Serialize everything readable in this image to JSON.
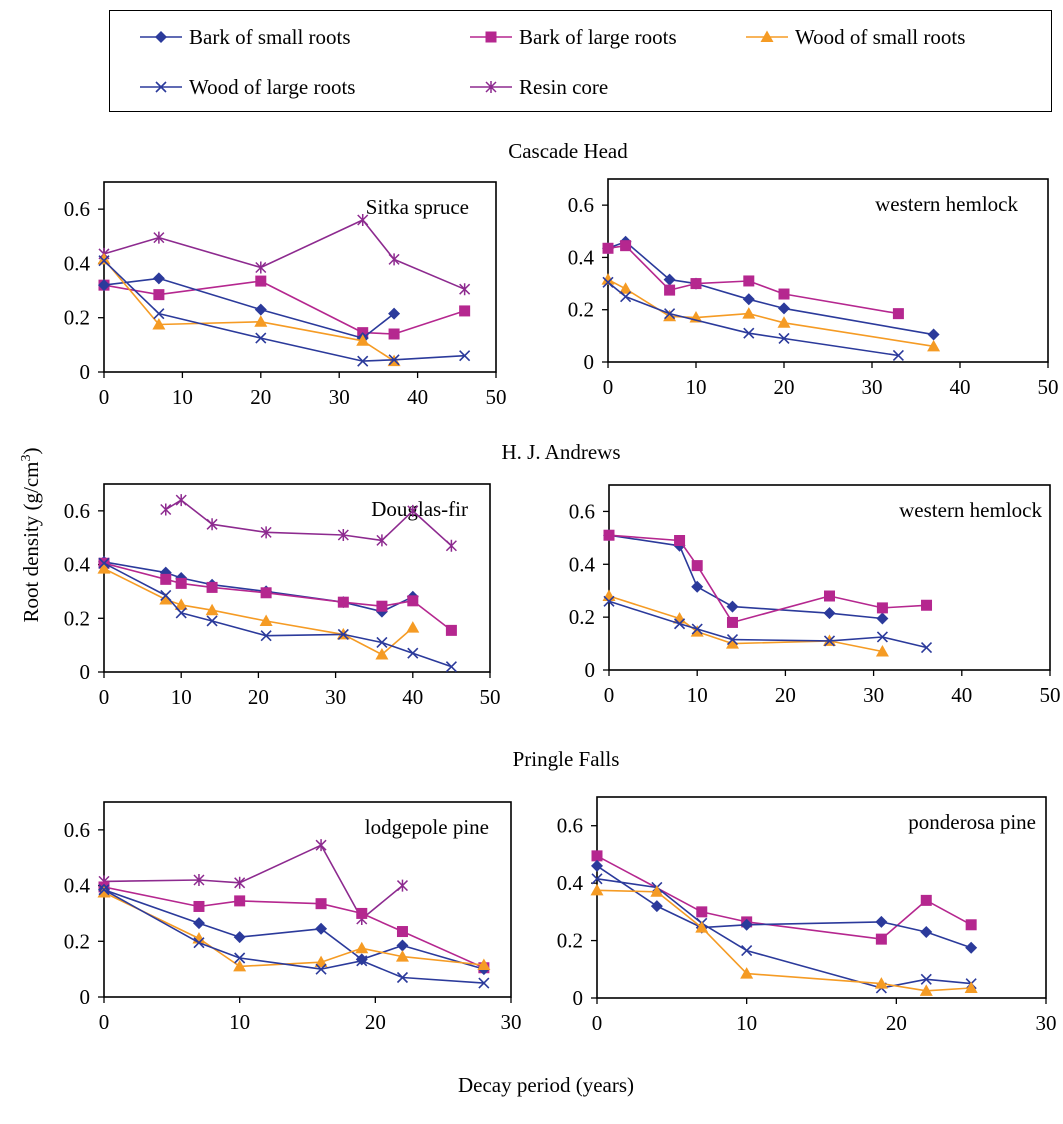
{
  "legend": {
    "position": "top",
    "entries": [
      {
        "key": "bsr",
        "label": "Bark of small roots",
        "color": "#2b3a9b",
        "marker": "diamond"
      },
      {
        "key": "blr",
        "label": "Bark of large roots",
        "color": "#b5278f",
        "marker": "square"
      },
      {
        "key": "wsr",
        "label": "Wood of small roots",
        "color": "#f59b24",
        "marker": "triangle"
      },
      {
        "key": "wlr",
        "label": "Wood of large roots",
        "color": "#2b3a9b",
        "marker": "x"
      },
      {
        "key": "rc",
        "label": "Resin core",
        "color": "#8d2a8f",
        "marker": "asterisk"
      }
    ]
  },
  "sites": [
    "Cascade Head",
    "H. J. Andrews",
    "Pringle Falls"
  ],
  "ylabel": "Root density (g/cm",
  "ylabel_sup": "3",
  "ylabel_close": ")",
  "xlabel": "Decay period (years)",
  "chart_data": [
    {
      "type": "line",
      "site": "Cascade Head",
      "title": "Sitka spruce",
      "xlim": [
        0,
        50
      ],
      "ylim": [
        0,
        0.7
      ],
      "xticks": [
        0,
        10,
        20,
        30,
        40,
        50
      ],
      "yticks": [
        0,
        0.2,
        0.4,
        0.6
      ],
      "xtick_labels": [
        "0",
        "10",
        "20",
        "30",
        "40",
        "50"
      ],
      "ytick_labels": [
        "0",
        "0.2",
        "0.4",
        "0.6"
      ],
      "series": [
        {
          "key": "rc",
          "x": [
            0,
            7,
            20,
            33,
            37,
            46
          ],
          "y": [
            0.435,
            0.495,
            0.385,
            0.56,
            0.415,
            0.305
          ]
        },
        {
          "key": "blr",
          "x": [
            0,
            7,
            20,
            33,
            37,
            46
          ],
          "y": [
            0.32,
            0.285,
            0.335,
            0.145,
            0.14,
            0.225
          ]
        },
        {
          "key": "bsr",
          "x": [
            0,
            7,
            20,
            33,
            37
          ],
          "y": [
            0.32,
            0.345,
            0.23,
            0.125,
            0.215
          ]
        },
        {
          "key": "wsr",
          "x": [
            0,
            7,
            20,
            33,
            37
          ],
          "y": [
            0.415,
            0.175,
            0.185,
            0.115,
            0.04
          ]
        },
        {
          "key": "wlr",
          "x": [
            0,
            7,
            20,
            33,
            37,
            46
          ],
          "y": [
            0.41,
            0.215,
            0.125,
            0.04,
            0.045,
            0.06
          ]
        }
      ]
    },
    {
      "type": "line",
      "site": "Cascade Head",
      "title": "western hemlock",
      "xlim": [
        0,
        50
      ],
      "ylim": [
        0,
        0.7
      ],
      "xticks": [
        0,
        10,
        20,
        30,
        40,
        50
      ],
      "yticks": [
        0,
        0.2,
        0.4,
        0.6
      ],
      "xtick_labels": [
        "0",
        "10",
        "20",
        "30",
        "40",
        "50"
      ],
      "ytick_labels": [
        "0",
        "0.2",
        "0.4",
        "0.6"
      ],
      "series": [
        {
          "key": "bsr",
          "x": [
            0,
            2,
            7,
            10,
            16,
            20,
            37
          ],
          "y": [
            0.435,
            0.46,
            0.315,
            0.3,
            0.24,
            0.205,
            0.105
          ]
        },
        {
          "key": "blr",
          "x": [
            0,
            2,
            7,
            10,
            16,
            20,
            33
          ],
          "y": [
            0.435,
            0.445,
            0.275,
            0.3,
            0.31,
            0.26,
            0.185
          ]
        },
        {
          "key": "wsr",
          "x": [
            0,
            2,
            7,
            10,
            16,
            20,
            37
          ],
          "y": [
            0.315,
            0.28,
            0.175,
            0.17,
            0.185,
            0.15,
            0.06
          ]
        },
        {
          "key": "wlr",
          "x": [
            0,
            2,
            7,
            16,
            20,
            33
          ],
          "y": [
            0.305,
            0.25,
            0.185,
            0.11,
            0.09,
            0.025
          ]
        }
      ]
    },
    {
      "type": "line",
      "site": "H. J. Andrews",
      "title": "Douglas-fir",
      "xlim": [
        0,
        50
      ],
      "ylim": [
        0,
        0.7
      ],
      "xticks": [
        0,
        10,
        20,
        30,
        40,
        50
      ],
      "yticks": [
        0,
        0.2,
        0.4,
        0.6
      ],
      "xtick_labels": [
        "0",
        "10",
        "20",
        "30",
        "40",
        "50"
      ],
      "ytick_labels": [
        "0",
        "0.2",
        "0.4",
        "0.6"
      ],
      "series": [
        {
          "key": "rc",
          "x": [
            8,
            10,
            14,
            21,
            31,
            36,
            40,
            45
          ],
          "y": [
            0.605,
            0.64,
            0.55,
            0.52,
            0.51,
            0.49,
            0.6,
            0.47
          ]
        },
        {
          "key": "bsr",
          "x": [
            0,
            8,
            10,
            14,
            21,
            31,
            36,
            40
          ],
          "y": [
            0.41,
            0.37,
            0.35,
            0.325,
            0.3,
            0.26,
            0.225,
            0.28
          ]
        },
        {
          "key": "blr",
          "x": [
            0,
            8,
            10,
            14,
            21,
            31,
            36,
            40,
            45
          ],
          "y": [
            0.405,
            0.345,
            0.33,
            0.315,
            0.295,
            0.26,
            0.245,
            0.265,
            0.155
          ]
        },
        {
          "key": "wsr",
          "x": [
            0,
            8,
            10,
            14,
            21,
            31,
            36,
            40
          ],
          "y": [
            0.385,
            0.27,
            0.25,
            0.23,
            0.19,
            0.14,
            0.065,
            0.165
          ]
        },
        {
          "key": "wlr",
          "x": [
            0,
            8,
            10,
            14,
            21,
            31,
            36,
            40,
            45
          ],
          "y": [
            0.405,
            0.285,
            0.22,
            0.19,
            0.135,
            0.14,
            0.11,
            0.07,
            0.02
          ]
        }
      ]
    },
    {
      "type": "line",
      "site": "H. J. Andrews",
      "title": "western hemlock",
      "xlim": [
        0,
        50
      ],
      "ylim": [
        0,
        0.7
      ],
      "xticks": [
        0,
        10,
        20,
        30,
        40,
        50
      ],
      "yticks": [
        0,
        0.2,
        0.4,
        0.6
      ],
      "xtick_labels": [
        "0",
        "10",
        "20",
        "30",
        "40",
        "50"
      ],
      "ytick_labels": [
        "0",
        "0.2",
        "0.4",
        "0.6"
      ],
      "series": [
        {
          "key": "bsr",
          "x": [
            0,
            8,
            10,
            14,
            25,
            31
          ],
          "y": [
            0.51,
            0.47,
            0.315,
            0.24,
            0.215,
            0.195
          ]
        },
        {
          "key": "blr",
          "x": [
            0,
            8,
            10,
            14,
            25,
            31,
            36
          ],
          "y": [
            0.51,
            0.49,
            0.395,
            0.18,
            0.28,
            0.235,
            0.245
          ]
        },
        {
          "key": "wsr",
          "x": [
            0,
            8,
            10,
            14,
            25,
            31
          ],
          "y": [
            0.28,
            0.195,
            0.145,
            0.1,
            0.11,
            0.07
          ]
        },
        {
          "key": "wlr",
          "x": [
            0,
            8,
            10,
            14,
            25,
            31,
            36
          ],
          "y": [
            0.26,
            0.175,
            0.155,
            0.115,
            0.11,
            0.125,
            0.085
          ]
        }
      ]
    },
    {
      "type": "line",
      "site": "Pringle Falls",
      "title": "lodgepole pine",
      "xlim": [
        0,
        30
      ],
      "ylim": [
        0,
        0.7
      ],
      "xticks": [
        0,
        10,
        20,
        30
      ],
      "yticks": [
        0,
        0.2,
        0.4,
        0.6
      ],
      "xtick_labels": [
        "0",
        "10",
        "20",
        "30"
      ],
      "ytick_labels": [
        "0",
        "0.2",
        "0.4",
        "0.6"
      ],
      "series": [
        {
          "key": "rc",
          "x": [
            0,
            7,
            10,
            16,
            19,
            22
          ],
          "y": [
            0.415,
            0.42,
            0.41,
            0.545,
            0.28,
            0.4
          ]
        },
        {
          "key": "blr",
          "x": [
            0,
            7,
            10,
            16,
            19,
            22,
            28
          ],
          "y": [
            0.395,
            0.325,
            0.345,
            0.335,
            0.3,
            0.235,
            0.105
          ]
        },
        {
          "key": "bsr",
          "x": [
            0,
            7,
            10,
            16,
            19,
            22,
            28
          ],
          "y": [
            0.385,
            0.265,
            0.215,
            0.245,
            0.135,
            0.185,
            0.1
          ]
        },
        {
          "key": "wsr",
          "x": [
            0,
            7,
            10,
            16,
            19,
            22,
            28
          ],
          "y": [
            0.375,
            0.21,
            0.11,
            0.125,
            0.175,
            0.145,
            0.115
          ]
        },
        {
          "key": "wlr",
          "x": [
            0,
            7,
            10,
            16,
            19,
            22,
            28
          ],
          "y": [
            0.385,
            0.195,
            0.14,
            0.1,
            0.13,
            0.07,
            0.05
          ]
        }
      ]
    },
    {
      "type": "line",
      "site": "Pringle Falls",
      "title": "ponderosa pine",
      "xlim": [
        0,
        30
      ],
      "ylim": [
        0,
        0.7
      ],
      "xticks": [
        0,
        10,
        20,
        30
      ],
      "yticks": [
        0,
        0.2,
        0.4,
        0.6
      ],
      "xtick_labels": [
        "0",
        "10",
        "20",
        "30"
      ],
      "ytick_labels": [
        "0",
        "0.2",
        "0.4",
        "0.6"
      ],
      "series": [
        {
          "key": "blr",
          "x": [
            0,
            7,
            10,
            19,
            22,
            25
          ],
          "y": [
            0.495,
            0.3,
            0.265,
            0.205,
            0.34,
            0.255
          ]
        },
        {
          "key": "bsr",
          "x": [
            0,
            4,
            7,
            10,
            19,
            22,
            25
          ],
          "y": [
            0.46,
            0.32,
            0.245,
            0.255,
            0.265,
            0.23,
            0.175
          ]
        },
        {
          "key": "wlr",
          "x": [
            0,
            4,
            7,
            10,
            19,
            22,
            25
          ],
          "y": [
            0.415,
            0.385,
            0.26,
            0.165,
            0.035,
            0.065,
            0.05
          ]
        },
        {
          "key": "wsr",
          "x": [
            0,
            4,
            7,
            10,
            19,
            22,
            25
          ],
          "y": [
            0.375,
            0.37,
            0.245,
            0.085,
            0.05,
            0.025,
            0.035
          ]
        }
      ]
    }
  ]
}
